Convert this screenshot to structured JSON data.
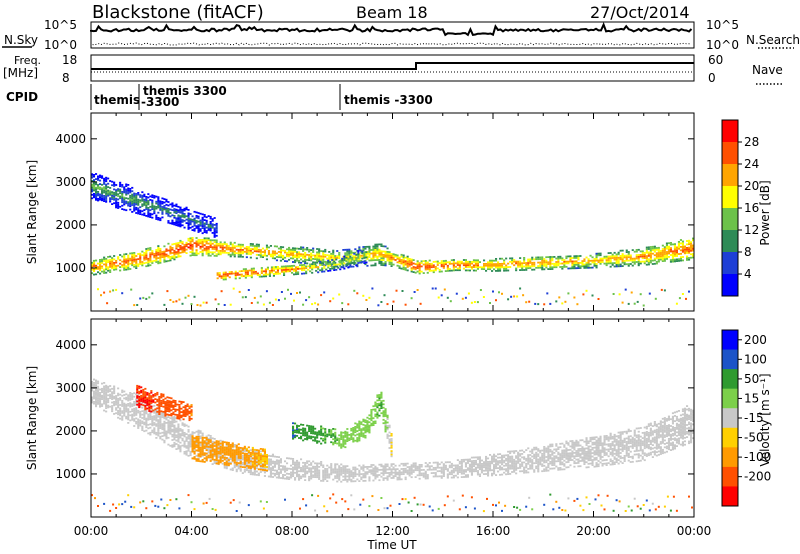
{
  "header": {
    "title": "Blackstone (fitACF)",
    "beam": "Beam 18",
    "date": "27/Oct/2014"
  },
  "noise_panel": {
    "left_label": "N.Sky",
    "right_label": "N.Search",
    "left_ticks": [
      "10^5",
      "10^0"
    ],
    "right_ticks": [
      "10^5",
      "10^0"
    ]
  },
  "freq_panel": {
    "left_label_1": "Freq.",
    "left_label_2": "[MHz]",
    "right_label": "Nave",
    "left_ticks": [
      "18",
      "8"
    ],
    "right_ticks": [
      "60",
      "0"
    ]
  },
  "cpid": {
    "label": "CPID",
    "entries": [
      {
        "line1": "themis",
        "line2": ""
      },
      {
        "line1": "themis  3300",
        "line2": "-3300"
      },
      {
        "line1": "themis  -3300",
        "line2": ""
      }
    ]
  },
  "colors": {
    "power": [
      "#0000ff",
      "#1e3fd6",
      "#2e8b57",
      "#6cc24a",
      "#ffff00",
      "#ffa500",
      "#ff5000",
      "#ff0000"
    ],
    "velocity": [
      "#0000ff",
      "#1c54c8",
      "#2f9a2f",
      "#7cd04a",
      "#c8c8c8",
      "#ffd000",
      "#ff9a00",
      "#ff5000",
      "#ff0000"
    ]
  },
  "chart_data": [
    {
      "type": "heatmap",
      "name": "power",
      "xlabel": "",
      "ylabel": "Slant Range [km]",
      "ylim": [
        0,
        4600
      ],
      "yticks": [
        "1000",
        "2000",
        "3000",
        "4000"
      ],
      "xlim": [
        0,
        24
      ],
      "colorbar": {
        "label": "Power [dB]",
        "ticks": [
          "4",
          "8",
          "12",
          "16",
          "20",
          "24",
          "28"
        ],
        "range": [
          0,
          32
        ]
      },
      "bands": [
        {
          "x": [
            0,
            2,
            4,
            6,
            8,
            10,
            11.5,
            12,
            13,
            14.5,
            16,
            18,
            20,
            22,
            24
          ],
          "center_km": [
            1000,
            1200,
            1500,
            1400,
            1300,
            1200,
            1300,
            1200,
            1000,
            1050,
            1050,
            1100,
            1150,
            1250,
            1450
          ],
          "half_width_km": [
            180,
            200,
            220,
            160,
            180,
            200,
            250,
            180,
            150,
            120,
            140,
            150,
            160,
            200,
            260
          ],
          "power_db": [
            24,
            26,
            28,
            24,
            22,
            20,
            22,
            24,
            28,
            26,
            24,
            24,
            22,
            24,
            26
          ]
        },
        {
          "x": [
            0,
            1,
            2,
            3,
            4,
            5
          ],
          "center_km": [
            2900,
            2700,
            2500,
            2300,
            2100,
            1900
          ],
          "half_width_km": [
            300,
            320,
            280,
            260,
            240,
            220
          ],
          "power_db": [
            14,
            12,
            12,
            10,
            10,
            8
          ]
        },
        {
          "x": [
            5,
            6,
            7,
            8,
            9,
            10,
            11
          ],
          "center_km": [
            800,
            850,
            900,
            950,
            1000,
            1100,
            1300
          ],
          "half_width_km": [
            100,
            100,
            110,
            120,
            120,
            140,
            180
          ],
          "power_db": [
            28,
            28,
            26,
            24,
            20,
            18,
            16
          ]
        }
      ]
    },
    {
      "type": "heatmap",
      "name": "velocity",
      "xlabel": "Time UT",
      "ylabel": "Slant Range [km]",
      "ylim": [
        0,
        4600
      ],
      "yticks": [
        "1000",
        "2000",
        "3000",
        "4000"
      ],
      "xlim": [
        0,
        24
      ],
      "xticks": [
        "00:00",
        "04:00",
        "08:00",
        "12:00",
        "16:00",
        "20:00",
        "00:00"
      ],
      "colorbar": {
        "label": "Velocity [m s⁻¹]",
        "ticks": [
          "200",
          "100",
          "50",
          "15",
          "-15",
          "-50",
          "-100",
          "-200"
        ]
      },
      "bands": [
        {
          "x": [
            0,
            2,
            4,
            6,
            8,
            10,
            12,
            13,
            14.5,
            16,
            18,
            20,
            22,
            24
          ],
          "center_km": [
            2900,
            2400,
            1700,
            1300,
            1100,
            1000,
            1050,
            1050,
            1100,
            1200,
            1350,
            1500,
            1700,
            2200
          ],
          "half_width_km": [
            300,
            400,
            350,
            300,
            250,
            200,
            200,
            180,
            200,
            250,
            300,
            350,
            400,
            450
          ],
          "velocity": [
            0,
            0,
            0,
            0,
            0,
            0,
            0,
            0,
            0,
            0,
            0,
            0,
            0,
            0
          ]
        },
        {
          "x": [
            1.8,
            2.3,
            2.8,
            3.3,
            4
          ],
          "center_km": [
            2800,
            2700,
            2600,
            2500,
            2400
          ],
          "half_width_km": [
            250,
            260,
            250,
            220,
            180
          ],
          "velocity": [
            -200,
            -200,
            -180,
            -150,
            -100
          ]
        },
        {
          "x": [
            4,
            5,
            6,
            7
          ],
          "center_km": [
            1600,
            1500,
            1400,
            1300
          ],
          "half_width_km": [
            300,
            280,
            260,
            240
          ],
          "velocity": [
            -80,
            -70,
            -60,
            -50
          ]
        },
        {
          "x": [
            8,
            9,
            10,
            11,
            11.5,
            12
          ],
          "center_km": [
            2000,
            1900,
            1800,
            2100,
            2700,
            1500
          ],
          "half_width_km": [
            200,
            200,
            220,
            240,
            300,
            300
          ],
          "velocity": [
            100,
            60,
            40,
            30,
            50,
            -30
          ]
        }
      ]
    }
  ]
}
